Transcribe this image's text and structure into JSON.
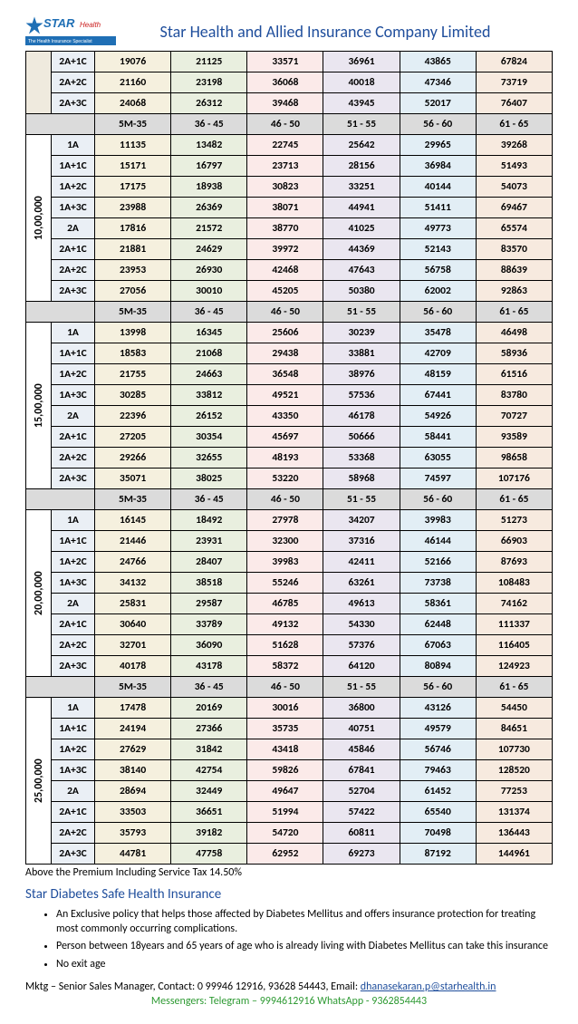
{
  "header": {
    "logo_main": "STAR",
    "logo_sub": "Health",
    "logo_tag": "The Health Insurance Specialist",
    "company": "Star Health and Allied Insurance Company Limited"
  },
  "age_headers": [
    "5M-35",
    "36 - 45",
    "46 - 50",
    "51 - 55",
    "56 - 60",
    "61 - 65"
  ],
  "top_rows": [
    [
      "2A+1C",
      "19076",
      "21125",
      "33571",
      "36961",
      "43865",
      "67824"
    ],
    [
      "2A+2C",
      "21160",
      "23198",
      "36068",
      "40018",
      "47346",
      "73719"
    ],
    [
      "2A+3C",
      "24068",
      "26312",
      "39468",
      "43945",
      "52017",
      "76407"
    ]
  ],
  "blocks": [
    {
      "si": "10,00,000",
      "rows": [
        [
          "1A",
          "11135",
          "13482",
          "22745",
          "25642",
          "29965",
          "39268"
        ],
        [
          "1A+1C",
          "15171",
          "16797",
          "23713",
          "28156",
          "36984",
          "51493"
        ],
        [
          "1A+2C",
          "17175",
          "18938",
          "30823",
          "33251",
          "40144",
          "54073"
        ],
        [
          "1A+3C",
          "23988",
          "26369",
          "38071",
          "44941",
          "51411",
          "69467"
        ],
        [
          "2A",
          "17816",
          "21572",
          "38770",
          "41025",
          "49773",
          "65574"
        ],
        [
          "2A+1C",
          "21881",
          "24629",
          "39972",
          "44369",
          "52143",
          "83570"
        ],
        [
          "2A+2C",
          "23953",
          "26930",
          "42468",
          "47643",
          "56758",
          "88639"
        ],
        [
          "2A+3C",
          "27056",
          "30010",
          "45205",
          "50380",
          "62002",
          "92863"
        ]
      ]
    },
    {
      "si": "15,00,000",
      "rows": [
        [
          "1A",
          "13998",
          "16345",
          "25606",
          "30239",
          "35478",
          "46498"
        ],
        [
          "1A+1C",
          "18583",
          "21068",
          "29438",
          "33881",
          "42709",
          "58936"
        ],
        [
          "1A+2C",
          "21755",
          "24663",
          "36548",
          "38976",
          "48159",
          "61516"
        ],
        [
          "1A+3C",
          "30285",
          "33812",
          "49521",
          "57536",
          "67441",
          "83780"
        ],
        [
          "2A",
          "22396",
          "26152",
          "43350",
          "46178",
          "54926",
          "70727"
        ],
        [
          "2A+1C",
          "27205",
          "30354",
          "45697",
          "50666",
          "58441",
          "93589"
        ],
        [
          "2A+2C",
          "29266",
          "32655",
          "48193",
          "53368",
          "63055",
          "98658"
        ],
        [
          "2A+3C",
          "35071",
          "38025",
          "53220",
          "58968",
          "74597",
          "107176"
        ]
      ]
    },
    {
      "si": "20,00,000",
      "rows": [
        [
          "1A",
          "16145",
          "18492",
          "27978",
          "34207",
          "39983",
          "51273"
        ],
        [
          "1A+1C",
          "21446",
          "23931",
          "32300",
          "37316",
          "46144",
          "66903"
        ],
        [
          "1A+2C",
          "24766",
          "28407",
          "39983",
          "42411",
          "52166",
          "87693"
        ],
        [
          "1A+3C",
          "34132",
          "38518",
          "55246",
          "63261",
          "73738",
          "108483"
        ],
        [
          "2A",
          "25831",
          "29587",
          "46785",
          "49613",
          "58361",
          "74162"
        ],
        [
          "2A+1C",
          "30640",
          "33789",
          "49132",
          "54330",
          "62448",
          "111337"
        ],
        [
          "2A+2C",
          "32701",
          "36090",
          "51628",
          "57376",
          "67063",
          "116405"
        ],
        [
          "2A+3C",
          "40178",
          "43178",
          "58372",
          "64120",
          "80894",
          "124923"
        ]
      ]
    },
    {
      "si": "25,00,000",
      "rows": [
        [
          "1A",
          "17478",
          "20169",
          "30016",
          "36800",
          "43126",
          "54450"
        ],
        [
          "1A+1C",
          "24194",
          "27366",
          "35735",
          "40751",
          "49579",
          "84651"
        ],
        [
          "1A+2C",
          "27629",
          "31842",
          "43418",
          "45846",
          "56746",
          "107730"
        ],
        [
          "1A+3C",
          "38140",
          "42754",
          "59826",
          "67841",
          "79463",
          "128520"
        ],
        [
          "2A",
          "28694",
          "32449",
          "49647",
          "52704",
          "61452",
          "77253"
        ],
        [
          "2A+1C",
          "33503",
          "36651",
          "51994",
          "57422",
          "65540",
          "131374"
        ],
        [
          "2A+2C",
          "35793",
          "39182",
          "54720",
          "60811",
          "70498",
          "136443"
        ],
        [
          "2A+3C",
          "44781",
          "47758",
          "62952",
          "69273",
          "87192",
          "144961"
        ]
      ]
    }
  ],
  "note": "Above the Premium Including Service Tax 14.50%",
  "section_title": "Star Diabetes Safe Health Insurance",
  "bullets": [
    "An Exclusive policy that helps those affected by Diabetes Mellitus and offers insurance protection for treating most commonly occurring complications.",
    "Person between 18years and 65 years of age who is already living with Diabetes Mellitus can take this insurance",
    "No exit age"
  ],
  "footer": {
    "contact_prefix": "Mktg – Senior Sales Manager, Contact:  0 99946 12916, 93628 54443, Email: ",
    "email": "dhanasekaran.p@starhealth.in",
    "messengers": "Messengers:  Telegram – 9994612916  WhatsApp - 9362854443"
  },
  "colors": {
    "c1": "#f5f0de",
    "c2": "#e9efdf",
    "c3": "#fbeae9",
    "c4": "#eae6f0",
    "c5": "#e2eef5",
    "c6": "#f7eadf"
  }
}
